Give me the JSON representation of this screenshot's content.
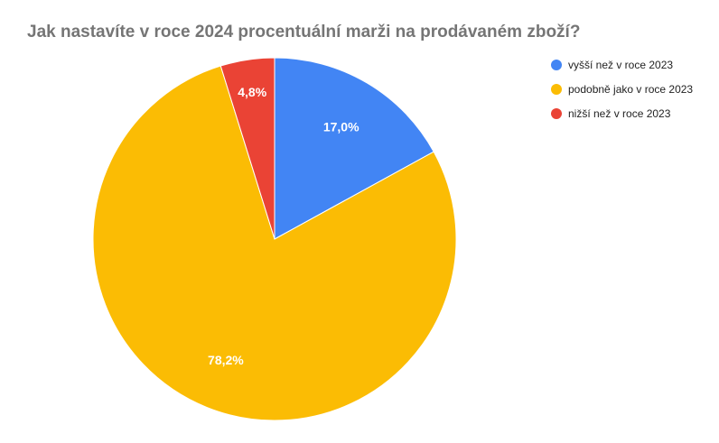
{
  "chart_data": {
    "type": "pie",
    "title": "Jak nastavíte v roce 2024 procentuální marži na prodávaném zboží?",
    "categories": [
      "vyšší než v roce 2023",
      "podobně jako v roce 2023",
      "nižší než v roce 2023"
    ],
    "values": [
      17.0,
      78.2,
      4.8
    ],
    "data_labels": [
      "17,0%",
      "78,2%",
      "4,8%"
    ],
    "colors": [
      "#4285F4",
      "#FBBC04",
      "#EA4335"
    ],
    "label_color": "#ffffff",
    "legend_position": "right",
    "start_angle": "top, clockwise"
  }
}
